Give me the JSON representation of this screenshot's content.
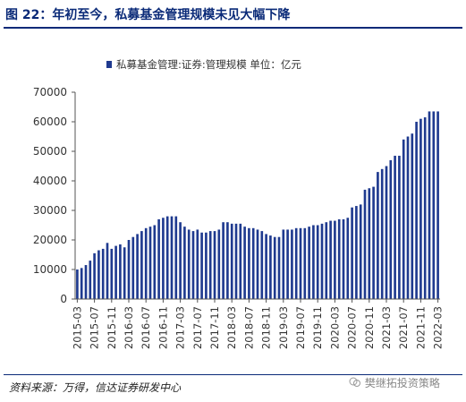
{
  "figure": {
    "title": "图 22：年初至今，私募基金管理规模未见大幅下降",
    "source": "资料来源：万得，信达证券研发中心",
    "watermark": "樊继拓投资策略"
  },
  "colors": {
    "bar": "#1f3a8f",
    "title": "#0a2a78",
    "axis": "#555555",
    "text": "#333333"
  },
  "chart_data": {
    "type": "bar",
    "legend": "私募基金管理:证券:管理规模 单位：亿元",
    "legend_position": "top",
    "ylim": [
      0,
      70000
    ],
    "yticks": [
      0,
      10000,
      20000,
      30000,
      40000,
      50000,
      60000,
      70000
    ],
    "grid": false,
    "x_tick_labels": [
      "2015-03",
      "2015-07",
      "2015-11",
      "2016-03",
      "2016-07",
      "2016-11",
      "2017-03",
      "2017-07",
      "2017-11",
      "2018-03",
      "2018-07",
      "2018-11",
      "2019-03",
      "2019-07",
      "2019-11",
      "2020-03",
      "2020-07",
      "2020-11",
      "2021-03",
      "2021-07",
      "2021-11",
      "2022-03"
    ],
    "categories": [
      "2015-03",
      "2015-04",
      "2015-05",
      "2015-06",
      "2015-07",
      "2015-08",
      "2015-09",
      "2015-10",
      "2015-11",
      "2015-12",
      "2016-01",
      "2016-02",
      "2016-03",
      "2016-04",
      "2016-05",
      "2016-06",
      "2016-07",
      "2016-08",
      "2016-09",
      "2016-10",
      "2016-11",
      "2016-12",
      "2017-01",
      "2017-02",
      "2017-03",
      "2017-04",
      "2017-05",
      "2017-06",
      "2017-07",
      "2017-08",
      "2017-09",
      "2017-10",
      "2017-11",
      "2017-12",
      "2018-01",
      "2018-02",
      "2018-03",
      "2018-04",
      "2018-05",
      "2018-06",
      "2018-07",
      "2018-08",
      "2018-09",
      "2018-10",
      "2018-11",
      "2018-12",
      "2019-01",
      "2019-02",
      "2019-03",
      "2019-04",
      "2019-05",
      "2019-06",
      "2019-07",
      "2019-08",
      "2019-09",
      "2019-10",
      "2019-11",
      "2019-12",
      "2020-01",
      "2020-02",
      "2020-03",
      "2020-04",
      "2020-05",
      "2020-06",
      "2020-07",
      "2020-08",
      "2020-09",
      "2020-10",
      "2020-11",
      "2020-12",
      "2021-01",
      "2021-02",
      "2021-03",
      "2021-04",
      "2021-05",
      "2021-06",
      "2021-07",
      "2021-08",
      "2021-09",
      "2021-10",
      "2021-11",
      "2021-12",
      "2022-01",
      "2022-02",
      "2022-03"
    ],
    "values": [
      10000,
      10500,
      11500,
      13000,
      15500,
      16500,
      17000,
      19000,
      17000,
      18000,
      18500,
      17500,
      20000,
      21000,
      22000,
      23000,
      24000,
      24500,
      25000,
      27000,
      27500,
      28000,
      28000,
      28000,
      26000,
      24500,
      23500,
      23000,
      23500,
      22500,
      22500,
      23000,
      23000,
      23500,
      26000,
      26000,
      25500,
      25500,
      25500,
      24500,
      24000,
      24000,
      23500,
      23000,
      22000,
      21500,
      21000,
      21000,
      23500,
      23500,
      23500,
      24000,
      24000,
      24000,
      24500,
      25000,
      25000,
      25500,
      26000,
      26500,
      26500,
      27000,
      27000,
      27500,
      31000,
      31500,
      32000,
      37000,
      37500,
      38000,
      43000,
      44000,
      45000,
      47000,
      48500,
      48500,
      54000,
      55000,
      56000,
      60000,
      61000,
      61500,
      63500,
      63500,
      63500
    ]
  }
}
